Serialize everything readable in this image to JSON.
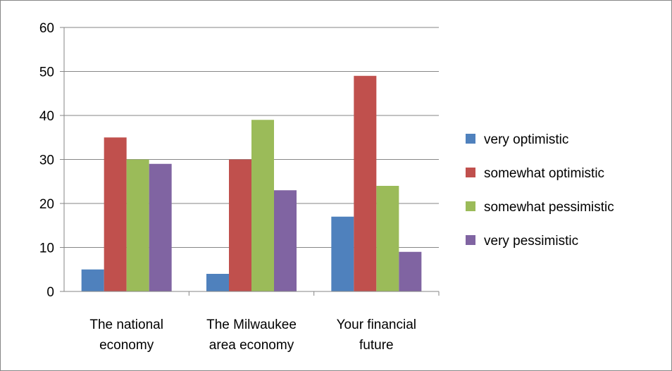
{
  "chart_data": {
    "type": "bar",
    "categories": [
      [
        "The national",
        "economy"
      ],
      [
        "The Milwaukee",
        "area economy"
      ],
      [
        "Your financial",
        "future"
      ]
    ],
    "series": [
      {
        "name": "very optimistic",
        "color": "#4f81bd",
        "values": [
          5,
          4,
          17
        ]
      },
      {
        "name": "somewhat optimistic",
        "color": "#c0504d",
        "values": [
          35,
          30,
          49
        ]
      },
      {
        "name": "somewhat pessimistic",
        "color": "#9bbb59",
        "values": [
          30,
          39,
          24
        ]
      },
      {
        "name": "very pessimistic",
        "color": "#8064a2",
        "values": [
          29,
          23,
          9
        ]
      }
    ],
    "ylim": [
      0,
      60
    ],
    "yticks": [
      0,
      10,
      20,
      30,
      40,
      50,
      60
    ],
    "grid": true,
    "legend_position": "right",
    "title": "",
    "xlabel": "",
    "ylabel": ""
  }
}
